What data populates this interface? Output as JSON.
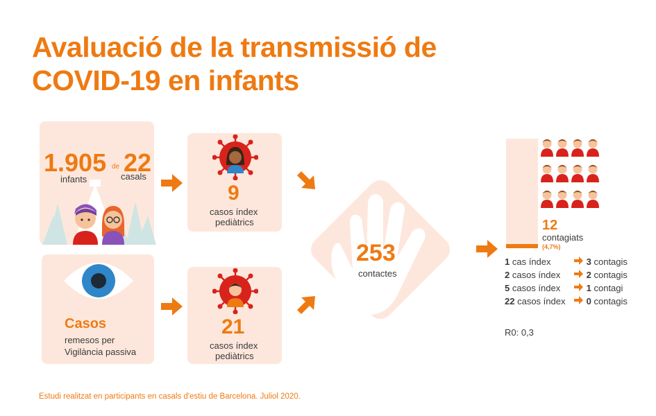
{
  "title": "Avaluació de la transmissió de COVID-19 en infants",
  "colors": {
    "accent": "#ee7a12",
    "card": "#fde7dc",
    "virus": "#d8231c",
    "eye_blue": "#2f86c8",
    "tree": "#cfe5e3"
  },
  "camps": {
    "infants_number": "1.905",
    "infants_label": "infants",
    "de": "de",
    "casals_number": "22",
    "casals_label": "casals"
  },
  "passive": {
    "casos": "Casos",
    "line1": "remesos per",
    "line2": "Vigilància passiva"
  },
  "index_top": {
    "number": "9",
    "line1": "casos índex",
    "line2": "pediàtrics"
  },
  "index_bottom": {
    "number": "21",
    "line1": "casos índex",
    "line2": "pediàtrics"
  },
  "contacts": {
    "number": "253",
    "label": "contactes"
  },
  "infected": {
    "number": "12",
    "label": "contagiats",
    "percent": "(4,7%)"
  },
  "stats": [
    {
      "bold": "1",
      "text": "cas índex",
      "result_bold": "3",
      "result_text": "contagis"
    },
    {
      "bold": "2",
      "text": "casos índex",
      "result_bold": "2",
      "result_text": "contagis"
    },
    {
      "bold": "5",
      "text": "casos índex",
      "result_bold": "1",
      "result_text": "contagi"
    },
    {
      "bold": "22",
      "text": "casos índex",
      "result_bold": "0",
      "result_text": "contagis"
    }
  ],
  "r0": "R0: 0,3",
  "footnote": "Estudi realitzat en participants en casals d'estiu de Barcelona. Juliol 2020."
}
